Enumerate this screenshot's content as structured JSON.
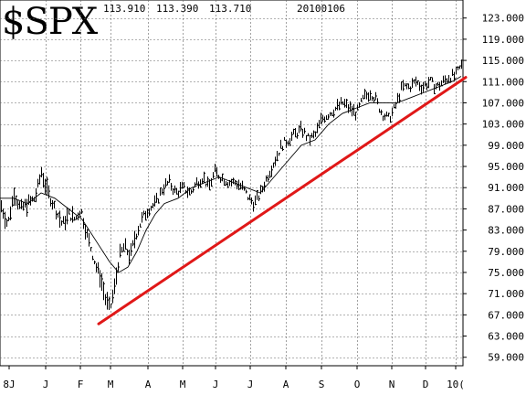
{
  "header": {
    "ticker": "$SPX",
    "high": "113.910",
    "low": "113.390",
    "close": "113.710",
    "date": "20100106"
  },
  "chart_data": {
    "type": "ohlc",
    "price_axis_labels": [
      "123.000",
      "119.000",
      "115.000",
      "111.000",
      "107.000",
      "103.000",
      "99.000",
      "95.000",
      "91.000",
      "87.000",
      "83.000",
      "79.000",
      "75.000",
      "71.000",
      "67.000",
      "63.000",
      "59.000"
    ],
    "price_axis_values": [
      123,
      119,
      115,
      111,
      107,
      103,
      99,
      95,
      91,
      87,
      83,
      79,
      75,
      71,
      67,
      63,
      59
    ],
    "ylim": [
      57.4,
      126.4
    ],
    "month_labels": [
      "8J",
      "J",
      "F",
      "M",
      "A",
      "M",
      "J",
      "J",
      "A",
      "S",
      "O",
      "N",
      "D",
      "10("
    ],
    "x_range": [
      "2008-12",
      "2010-01-06"
    ],
    "grid": true,
    "series": [
      {
        "kind": "price-bars",
        "anchors": [
          [
            0,
            88
          ],
          [
            8,
            84
          ],
          [
            15,
            90
          ],
          [
            22,
            87
          ],
          [
            30,
            88
          ],
          [
            38,
            89
          ],
          [
            45,
            94
          ],
          [
            50,
            91
          ],
          [
            60,
            87
          ],
          [
            68,
            84
          ],
          [
            75,
            86
          ],
          [
            82,
            85
          ],
          [
            88,
            87
          ],
          [
            95,
            82
          ],
          [
            100,
            79
          ],
          [
            105,
            76
          ],
          [
            110,
            74
          ],
          [
            115,
            70
          ],
          [
            120,
            68
          ],
          [
            125,
            72
          ],
          [
            130,
            78
          ],
          [
            136,
            80
          ],
          [
            142,
            78
          ],
          [
            148,
            82
          ],
          [
            155,
            85
          ],
          [
            162,
            87
          ],
          [
            170,
            88
          ],
          [
            178,
            91
          ],
          [
            185,
            92
          ],
          [
            192,
            90
          ],
          [
            200,
            91
          ],
          [
            208,
            90
          ],
          [
            215,
            92
          ],
          [
            222,
            93
          ],
          [
            228,
            91
          ],
          [
            235,
            94
          ],
          [
            242,
            93
          ],
          [
            250,
            92
          ],
          [
            258,
            92
          ],
          [
            265,
            91
          ],
          [
            272,
            89
          ],
          [
            278,
            88
          ],
          [
            285,
            90
          ],
          [
            292,
            93
          ],
          [
            300,
            96
          ],
          [
            308,
            99
          ],
          [
            315,
            100
          ],
          [
            322,
            101
          ],
          [
            330,
            102
          ],
          [
            338,
            100
          ],
          [
            345,
            101
          ],
          [
            352,
            104
          ],
          [
            360,
            105
          ],
          [
            368,
            106
          ],
          [
            375,
            107
          ],
          [
            382,
            106
          ],
          [
            390,
            105
          ],
          [
            398,
            108
          ],
          [
            405,
            109
          ],
          [
            410,
            108
          ],
          [
            418,
            105
          ],
          [
            425,
            104
          ],
          [
            432,
            106
          ],
          [
            440,
            110
          ],
          [
            448,
            110
          ],
          [
            455,
            111
          ],
          [
            462,
            110
          ],
          [
            470,
            111
          ],
          [
            478,
            110
          ],
          [
            485,
            111
          ],
          [
            492,
            112
          ],
          [
            498,
            112
          ],
          [
            505,
            114
          ]
        ]
      },
      {
        "kind": "moving-average",
        "anchors": [
          [
            0,
            89
          ],
          [
            15,
            89
          ],
          [
            30,
            88
          ],
          [
            45,
            90
          ],
          [
            60,
            89
          ],
          [
            75,
            87
          ],
          [
            90,
            85
          ],
          [
            105,
            81
          ],
          [
            120,
            77
          ],
          [
            130,
            75
          ],
          [
            140,
            76
          ],
          [
            150,
            79
          ],
          [
            160,
            83
          ],
          [
            170,
            86
          ],
          [
            180,
            88
          ],
          [
            195,
            89
          ],
          [
            210,
            91
          ],
          [
            225,
            92
          ],
          [
            240,
            93
          ],
          [
            255,
            92
          ],
          [
            270,
            91
          ],
          [
            285,
            90
          ],
          [
            300,
            93
          ],
          [
            315,
            96
          ],
          [
            330,
            99
          ],
          [
            345,
            100
          ],
          [
            360,
            103
          ],
          [
            375,
            105
          ],
          [
            390,
            106
          ],
          [
            405,
            107
          ],
          [
            420,
            107
          ],
          [
            435,
            107
          ],
          [
            450,
            108
          ],
          [
            465,
            109
          ],
          [
            480,
            110
          ],
          [
            495,
            111
          ],
          [
            505,
            112
          ]
        ]
      },
      {
        "kind": "trendline",
        "color": "#e01818",
        "points": [
          [
            108,
            65.3
          ],
          [
            510,
            111.8
          ]
        ]
      }
    ]
  }
}
